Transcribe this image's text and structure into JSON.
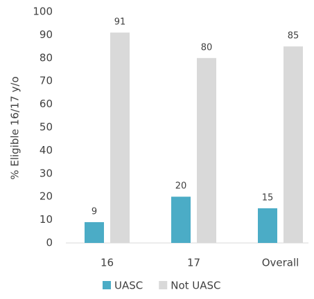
{
  "chart_data": {
    "type": "bar",
    "y_label": "% Eligible 16/17 y/o",
    "categories": [
      "16",
      "17",
      "Overall"
    ],
    "series": [
      {
        "name": "UASC",
        "color": "#4bacc6",
        "values": [
          9,
          20,
          15
        ]
      },
      {
        "name": "Not UASC",
        "color": "#d9d9d9",
        "values": [
          91,
          80,
          85
        ]
      }
    ],
    "ylim": [
      0,
      100
    ],
    "yticks": [
      0,
      10,
      20,
      30,
      40,
      50,
      60,
      70,
      80,
      90,
      100
    ],
    "grid": false,
    "legend": "bottom"
  }
}
